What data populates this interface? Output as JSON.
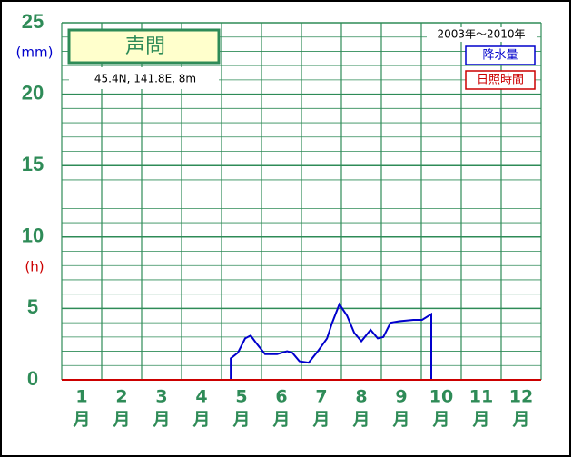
{
  "chart_data": {
    "type": "line",
    "title": "声問",
    "subtitle": "45.4N,  141.8E,  8m",
    "period": "2003年〜2010年",
    "y_label": "(mm)",
    "y_label_2": "(h)",
    "y_label_color": "#0000cc",
    "y_label_2_color": "#cc0000",
    "categories": [
      "1",
      "2",
      "3",
      "4",
      "5",
      "6",
      "7",
      "8",
      "9",
      "10",
      "11",
      "12"
    ],
    "category_unit": "月",
    "xlim": [
      0,
      12
    ],
    "ylim": [
      0,
      25
    ],
    "yticks": [
      0,
      5,
      10,
      15,
      20,
      25
    ],
    "minor_yticks": [
      1,
      2,
      3,
      4,
      6,
      7,
      8,
      9,
      11,
      12,
      13,
      14,
      16,
      17,
      18,
      19,
      21,
      22,
      23,
      24
    ],
    "grid": true,
    "legend": "top-right",
    "series": [
      {
        "name": "降水量",
        "color": "#0000cc",
        "x": [
          4.23,
          4.23,
          4.41,
          4.59,
          4.73,
          4.86,
          5.09,
          5.39,
          5.64,
          5.77,
          5.95,
          6.18,
          6.41,
          6.64,
          6.77,
          6.95,
          7.14,
          7.32,
          7.5,
          7.73,
          7.91,
          8.05,
          8.23,
          8.45,
          8.8,
          9.02,
          9.25,
          9.25
        ],
        "values": [
          0,
          1.5,
          1.9,
          2.9,
          3.1,
          2.6,
          1.8,
          1.8,
          2.0,
          1.9,
          1.3,
          1.2,
          2.0,
          2.9,
          4.0,
          5.3,
          4.5,
          3.3,
          2.7,
          3.5,
          2.9,
          3.0,
          4.0,
          4.1,
          4.2,
          4.2,
          4.6,
          0
        ]
      },
      {
        "name": "日照時間",
        "color": "#cc0000",
        "x": [
          0,
          12
        ],
        "values": [
          0,
          0
        ]
      }
    ]
  }
}
